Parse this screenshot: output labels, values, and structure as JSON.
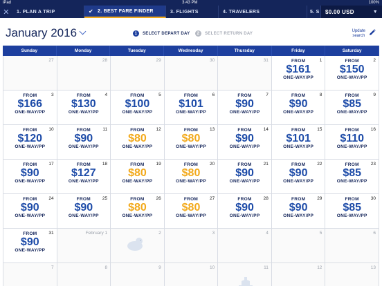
{
  "status": {
    "device": "iPad",
    "time": "3:43 PM",
    "battery": "100%"
  },
  "steps": [
    {
      "label": "1. PLAN A TRIP"
    },
    {
      "label": "2. BEST FARE FINDER",
      "active": true
    },
    {
      "label": "3. FLIGHTS"
    },
    {
      "label": "4. TRAVELERS"
    },
    {
      "label": "5. S"
    }
  ],
  "total_price": "$0.00 USD",
  "month": "January 2016",
  "select_depart": {
    "num": "1",
    "label": "SELECT DEPART DAY"
  },
  "select_return": {
    "num": "2",
    "label": "SELECT RETURN DAY"
  },
  "update_search": {
    "line1": "Update",
    "line2": "search"
  },
  "weekdays": [
    "Sunday",
    "Monday",
    "Tuesday",
    "Wednesday",
    "Thursday",
    "Friday",
    "Saturday"
  ],
  "fare_labels": {
    "from": "FROM",
    "per_person": "ONE-WAY/PP"
  },
  "colors": {
    "nav": "#14255a",
    "accent": "#1d3f9e",
    "lowest": "#f2a91b"
  },
  "days": [
    {
      "day": "27",
      "inactive": true,
      "price": null
    },
    {
      "day": "28",
      "inactive": true,
      "price": null
    },
    {
      "day": "29",
      "inactive": true,
      "price": null
    },
    {
      "day": "30",
      "inactive": true,
      "price": null
    },
    {
      "day": "31",
      "inactive": true,
      "price": null
    },
    {
      "day": "1",
      "price": "$161"
    },
    {
      "day": "2",
      "price": "$150"
    },
    {
      "day": "3",
      "price": "$166"
    },
    {
      "day": "4",
      "price": "$130"
    },
    {
      "day": "5",
      "price": "$100"
    },
    {
      "day": "6",
      "price": "$101"
    },
    {
      "day": "7",
      "price": "$90"
    },
    {
      "day": "8",
      "price": "$90"
    },
    {
      "day": "9",
      "price": "$85"
    },
    {
      "day": "10",
      "price": "$120"
    },
    {
      "day": "11",
      "price": "$90"
    },
    {
      "day": "12",
      "price": "$80",
      "low": true
    },
    {
      "day": "13",
      "price": "$80",
      "low": true
    },
    {
      "day": "14",
      "price": "$90"
    },
    {
      "day": "15",
      "price": "$101"
    },
    {
      "day": "16",
      "price": "$110"
    },
    {
      "day": "17",
      "price": "$90"
    },
    {
      "day": "18",
      "price": "$127"
    },
    {
      "day": "19",
      "price": "$80",
      "low": true
    },
    {
      "day": "20",
      "price": "$80",
      "low": true
    },
    {
      "day": "21",
      "price": "$90"
    },
    {
      "day": "22",
      "price": "$90"
    },
    {
      "day": "23",
      "price": "$85"
    },
    {
      "day": "24",
      "price": "$90"
    },
    {
      "day": "25",
      "price": "$90"
    },
    {
      "day": "26",
      "price": "$80",
      "low": true
    },
    {
      "day": "27",
      "price": "$80",
      "low": true
    },
    {
      "day": "28",
      "price": "$90"
    },
    {
      "day": "29",
      "price": "$90"
    },
    {
      "day": "30",
      "price": "$85"
    },
    {
      "day": "31",
      "price": "$90"
    },
    {
      "day": "February 1",
      "inactive": true,
      "price": null
    },
    {
      "day": "2",
      "inactive": true,
      "price": null,
      "deco": "groundhog-icon"
    },
    {
      "day": "3",
      "inactive": true,
      "price": null
    },
    {
      "day": "4",
      "inactive": true,
      "price": null
    },
    {
      "day": "5",
      "inactive": true,
      "price": null
    },
    {
      "day": "6",
      "inactive": true,
      "price": null
    },
    {
      "day": "7",
      "inactive": true,
      "price": null
    },
    {
      "day": "8",
      "inactive": true,
      "price": null
    },
    {
      "day": "9",
      "inactive": true,
      "price": null
    },
    {
      "day": "10",
      "inactive": true,
      "price": null
    },
    {
      "day": "11",
      "inactive": true,
      "price": null,
      "deco": "building-icon"
    },
    {
      "day": "12",
      "inactive": true,
      "price": null
    },
    {
      "day": "13",
      "inactive": true,
      "price": null
    }
  ]
}
